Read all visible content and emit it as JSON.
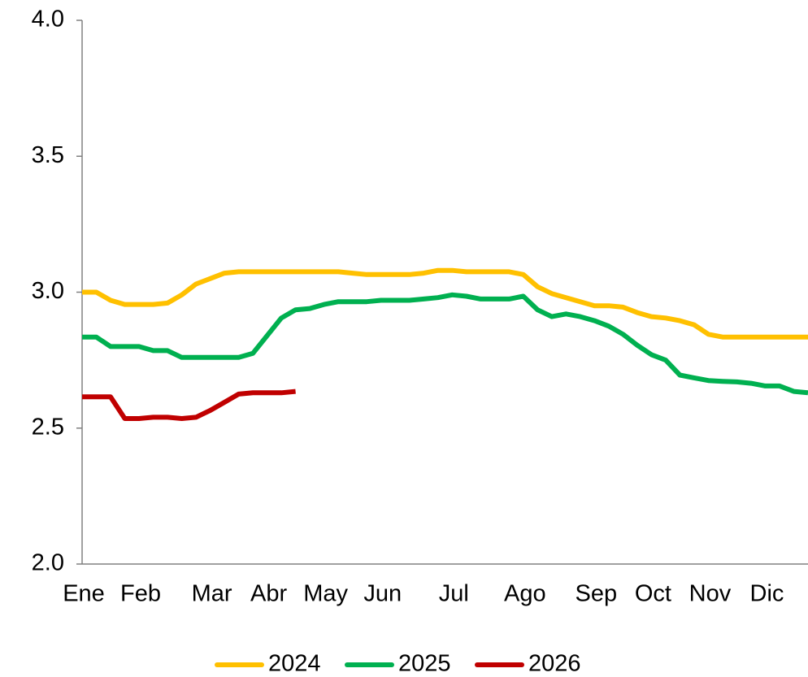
{
  "chart_data": {
    "type": "line",
    "categories": [
      "Ene",
      null,
      null,
      null,
      "Feb",
      null,
      null,
      null,
      null,
      "Mar",
      null,
      null,
      null,
      "Abr",
      null,
      null,
      null,
      "May",
      null,
      null,
      null,
      "Jun",
      null,
      null,
      null,
      null,
      "Jul",
      null,
      null,
      null,
      null,
      "Ago",
      null,
      null,
      null,
      null,
      "Sep",
      null,
      null,
      null,
      "Oct",
      null,
      null,
      null,
      "Nov",
      null,
      null,
      null,
      "Dic",
      null,
      null,
      null
    ],
    "series": [
      {
        "name": "2024",
        "color": "#ffc000",
        "values": [
          3.0,
          3.0,
          2.97,
          2.955,
          2.955,
          2.955,
          2.96,
          2.99,
          3.03,
          3.05,
          3.07,
          3.075,
          3.075,
          3.075,
          3.075,
          3.075,
          3.075,
          3.075,
          3.075,
          3.07,
          3.065,
          3.065,
          3.065,
          3.065,
          3.07,
          3.08,
          3.08,
          3.075,
          3.075,
          3.075,
          3.075,
          3.065,
          3.02,
          2.995,
          2.98,
          2.965,
          2.95,
          2.95,
          2.945,
          2.925,
          2.91,
          2.905,
          2.895,
          2.88,
          2.845,
          2.835,
          2.835,
          2.835,
          2.835,
          2.835,
          2.835,
          2.835
        ]
      },
      {
        "name": "2025",
        "color": "#00b050",
        "values": [
          2.835,
          2.835,
          2.8,
          2.8,
          2.8,
          2.785,
          2.785,
          2.76,
          2.76,
          2.76,
          2.76,
          2.76,
          2.775,
          2.84,
          2.905,
          2.935,
          2.94,
          2.955,
          2.965,
          2.965,
          2.965,
          2.97,
          2.97,
          2.97,
          2.975,
          2.98,
          2.99,
          2.985,
          2.975,
          2.975,
          2.975,
          2.985,
          2.935,
          2.91,
          2.92,
          2.91,
          2.895,
          2.875,
          2.845,
          2.805,
          2.77,
          2.75,
          2.695,
          2.685,
          2.675,
          2.672,
          2.67,
          2.665,
          2.655,
          2.655,
          2.635,
          2.63
        ]
      },
      {
        "name": "2026",
        "color": "#c00000",
        "values": [
          2.615,
          2.615,
          2.615,
          2.535,
          2.535,
          2.54,
          2.54,
          2.535,
          2.54,
          2.565,
          2.595,
          2.625,
          2.63,
          2.63,
          2.63,
          2.635,
          null,
          null,
          null,
          null,
          null,
          null,
          null,
          null,
          null,
          null,
          null,
          null,
          null,
          null,
          null,
          null,
          null,
          null,
          null,
          null,
          null,
          null,
          null,
          null,
          null,
          null,
          null,
          null,
          null,
          null,
          null,
          null,
          null,
          null,
          null,
          null
        ]
      }
    ],
    "ylim": [
      2.0,
      4.0
    ],
    "yticks": [
      {
        "value": 2.0,
        "label": "2.0"
      },
      {
        "value": 2.5,
        "label": "2.5"
      },
      {
        "value": 3.0,
        "label": "3.0"
      },
      {
        "value": 3.5,
        "label": "3.5"
      },
      {
        "value": 4.0,
        "label": "4.0"
      }
    ],
    "legend": "bottom"
  }
}
